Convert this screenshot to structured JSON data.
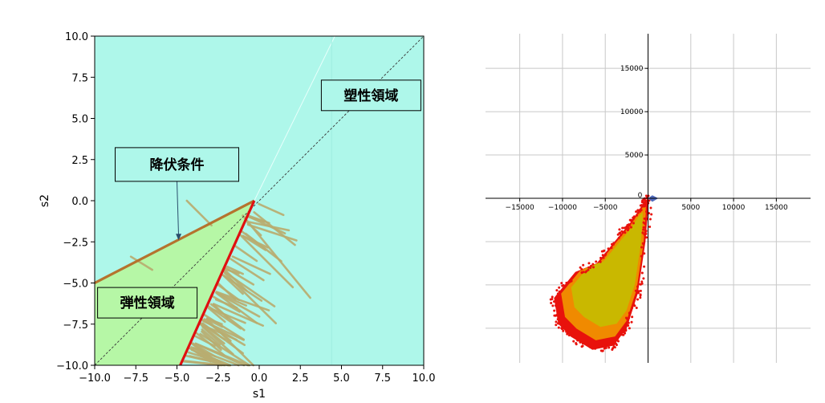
{
  "chart_data": [
    {
      "type": "area",
      "xlabel": "s1",
      "ylabel": "s2",
      "xlim": [
        -10,
        10
      ],
      "ylim": [
        -10,
        10
      ],
      "x_ticks": [
        -10.0,
        -7.5,
        -5.0,
        -2.5,
        0.0,
        2.5,
        5.0,
        7.5,
        10.0
      ],
      "y_ticks": [
        -10.0,
        -7.5,
        -5.0,
        -2.5,
        0.0,
        2.5,
        5.0,
        7.5,
        10.0
      ],
      "x_tick_labels": [
        "−10.0",
        "−7.5",
        "−5.0",
        "−2.5",
        "0.0",
        "2.5",
        "5.0",
        "7.5",
        "10.0"
      ],
      "y_tick_labels": [
        "−10.0",
        "−7.5",
        "−5.0",
        "−2.5",
        "0.0",
        "2.5",
        "5.0",
        "7.5",
        "10.0"
      ],
      "grid": false,
      "colors": {
        "plastic_region": "#aef7ea",
        "elastic_region": "#b6f7a6",
        "yield_upper": "#b5732e",
        "yield_lower": "#e01010",
        "strain_paths": "#b9ad70",
        "diagonal": "#3a3a3a"
      },
      "yield_surface": {
        "apex": [
          -0.3,
          0.0
        ],
        "upper_branch": [
          [
            -10.0,
            -5.0
          ],
          [
            -0.3,
            0.0
          ]
        ],
        "lower_branch": [
          [
            -4.8,
            -10.0
          ],
          [
            -0.3,
            0.0
          ]
        ]
      },
      "diagonal_line": [
        [
          -10,
          -10
        ],
        [
          10,
          10
        ]
      ],
      "annotations": [
        {
          "text": "塑性領域",
          "x": 6.8,
          "y": 6.4
        },
        {
          "text": "降伏条件",
          "x": -5.0,
          "y": 2.2,
          "arrow_to": [
            -4.9,
            -2.4
          ]
        },
        {
          "text": "弾性領域",
          "x": -6.8,
          "y": -6.2
        }
      ]
    },
    {
      "type": "scatter",
      "xlim": [
        -19000,
        19000
      ],
      "ylim": [
        -19000,
        19000
      ],
      "x_ticks": [
        -15000,
        -10000,
        -5000,
        0,
        5000,
        10000,
        15000
      ],
      "y_ticks": [
        5000,
        10000,
        15000
      ],
      "x_tick_labels": [
        "−15000",
        "−10000",
        "−5000",
        "0",
        "5000",
        "10000",
        "15000"
      ],
      "y_tick_labels": [
        "5000",
        "10000",
        "15000"
      ],
      "grid": true,
      "colors": {
        "outer_points": "#e8120c",
        "middle_points": "#f08a00",
        "inner_points": "#c9b800"
      },
      "cloud_outline": [
        [
          0,
          0
        ],
        [
          -700,
          -800
        ],
        [
          -1900,
          -2600
        ],
        [
          -3500,
          -4500
        ],
        [
          -6000,
          -7500
        ],
        [
          -8500,
          -8500
        ],
        [
          -11000,
          -11500
        ],
        [
          -10500,
          -14500
        ],
        [
          -9000,
          -16000
        ],
        [
          -6500,
          -17500
        ],
        [
          -4000,
          -17000
        ],
        [
          -2500,
          -15000
        ],
        [
          -1200,
          -11000
        ],
        [
          -300,
          -5000
        ],
        [
          0,
          -1200
        ]
      ]
    }
  ]
}
